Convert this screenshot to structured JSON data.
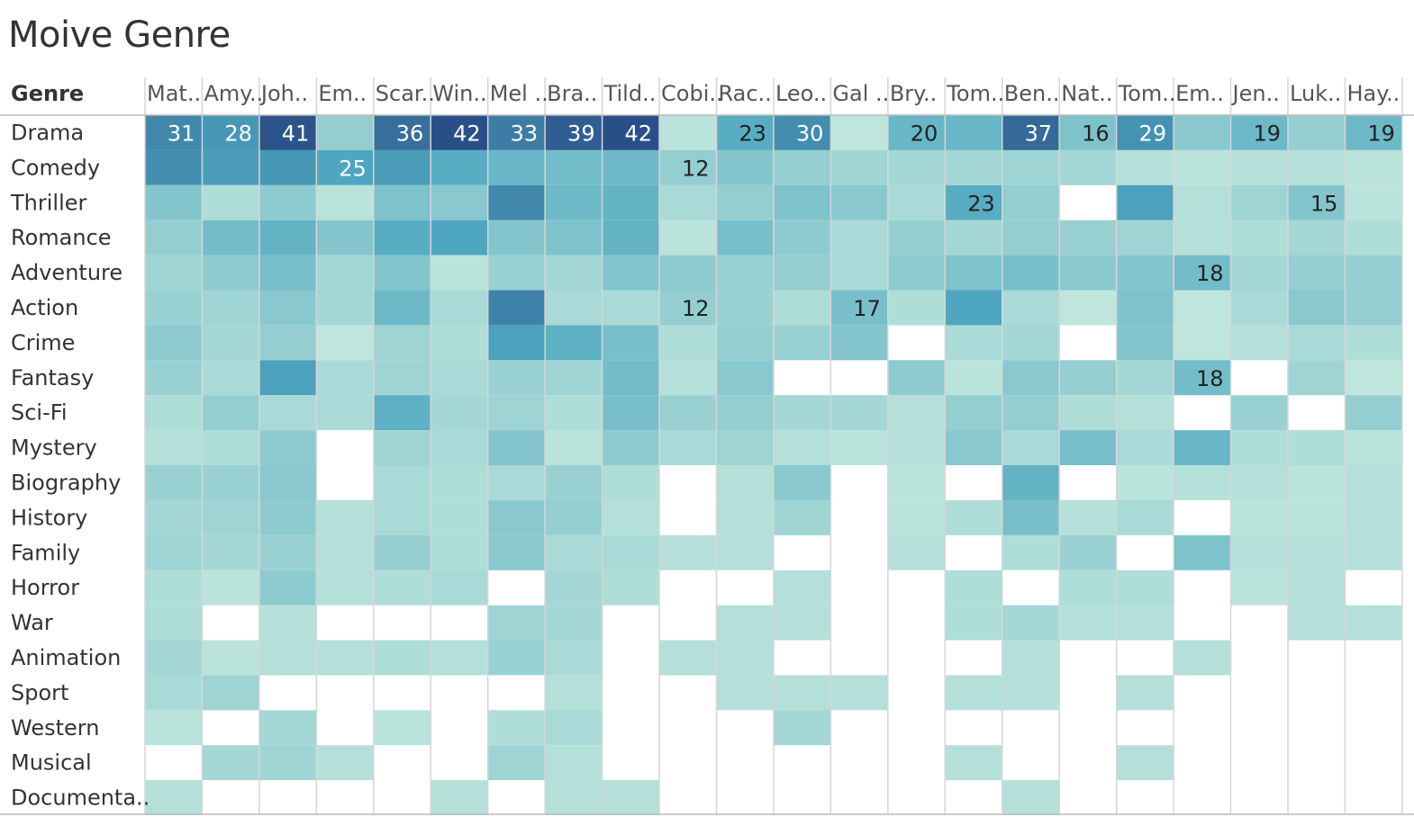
{
  "title": "Moive Genre",
  "chart_data": {
    "type": "heatmap",
    "title": "Moive Genre",
    "row_header": "Genre",
    "rows": [
      "Drama",
      "Comedy",
      "Thriller",
      "Romance",
      "Adventure",
      "Action",
      "Crime",
      "Fantasy",
      "Sci-Fi",
      "Mystery",
      "Biography",
      "History",
      "Family",
      "Horror",
      "War",
      "Animation",
      "Sport",
      "Western",
      "Musical",
      "Documenta.."
    ],
    "columns": [
      "Mat..",
      "Amy..",
      "Joh..",
      "Em..",
      "Scar..",
      "Win..",
      "Mel ..",
      "Bra..",
      "Tild..",
      "Cobi..",
      "Rac..",
      "Leo..",
      "Gal ..",
      "Bry..",
      "Tom..",
      "Ben..",
      "Nat..",
      "Tom..",
      "Em..",
      "Jen..",
      "Luk..",
      "Hay.."
    ],
    "values": [
      [
        31,
        28,
        41,
        12,
        36,
        42,
        33,
        39,
        42,
        5,
        23,
        30,
        4,
        20,
        20,
        37,
        16,
        29,
        14,
        19,
        12,
        19
      ],
      [
        30,
        27,
        28,
        25,
        27,
        23,
        20,
        18,
        19,
        12,
        15,
        12,
        10,
        9,
        9,
        10,
        9,
        6,
        5,
        6,
        6,
        5
      ],
      [
        15,
        7,
        13,
        5,
        16,
        14,
        31,
        19,
        21,
        8,
        12,
        16,
        14,
        8,
        23,
        12,
        null,
        26,
        6,
        10,
        15,
        5
      ],
      [
        12,
        18,
        21,
        15,
        23,
        25,
        15,
        16,
        21,
        5,
        17,
        13,
        8,
        12,
        9,
        12,
        11,
        10,
        6,
        7,
        9,
        7
      ],
      [
        10,
        13,
        17,
        9,
        15,
        5,
        11,
        9,
        15,
        13,
        11,
        12,
        8,
        13,
        16,
        17,
        14,
        15,
        18,
        9,
        12,
        12
      ],
      [
        11,
        10,
        14,
        9,
        19,
        8,
        32,
        8,
        8,
        12,
        11,
        7,
        17,
        7,
        25,
        8,
        4,
        16,
        4,
        8,
        14,
        12
      ],
      [
        13,
        9,
        12,
        4,
        10,
        7,
        26,
        22,
        17,
        7,
        12,
        11,
        15,
        null,
        8,
        9,
        null,
        15,
        4,
        6,
        8,
        7
      ],
      [
        11,
        8,
        26,
        8,
        10,
        8,
        11,
        10,
        18,
        6,
        14,
        null,
        null,
        13,
        5,
        14,
        12,
        9,
        18,
        null,
        10,
        4
      ],
      [
        7,
        12,
        8,
        8,
        22,
        9,
        10,
        7,
        17,
        11,
        12,
        9,
        9,
        6,
        12,
        12,
        7,
        6,
        null,
        11,
        null,
        12
      ],
      [
        6,
        7,
        13,
        null,
        10,
        8,
        15,
        5,
        13,
        8,
        10,
        6,
        5,
        6,
        14,
        8,
        17,
        8,
        20,
        7,
        7,
        5
      ],
      [
        11,
        11,
        14,
        null,
        8,
        7,
        8,
        11,
        7,
        null,
        6,
        14,
        null,
        5,
        null,
        21,
        null,
        5,
        6,
        6,
        5,
        6
      ],
      [
        9,
        10,
        13,
        6,
        8,
        7,
        14,
        12,
        6,
        null,
        6,
        10,
        null,
        5,
        7,
        17,
        6,
        8,
        null,
        5,
        5,
        6
      ],
      [
        10,
        9,
        11,
        6,
        12,
        7,
        14,
        8,
        8,
        6,
        6,
        null,
        null,
        6,
        null,
        7,
        11,
        null,
        16,
        6,
        6,
        6
      ],
      [
        7,
        5,
        13,
        6,
        7,
        8,
        null,
        9,
        7,
        null,
        null,
        6,
        null,
        null,
        7,
        null,
        7,
        7,
        null,
        5,
        6,
        null
      ],
      [
        7,
        null,
        6,
        null,
        null,
        null,
        10,
        9,
        null,
        null,
        6,
        6,
        null,
        null,
        7,
        9,
        6,
        6,
        null,
        null,
        6,
        6
      ],
      [
        9,
        5,
        6,
        6,
        7,
        6,
        11,
        8,
        null,
        6,
        6,
        null,
        null,
        null,
        null,
        6,
        null,
        null,
        6,
        null,
        null,
        null
      ],
      [
        8,
        10,
        null,
        null,
        null,
        null,
        null,
        6,
        null,
        null,
        6,
        6,
        6,
        null,
        6,
        6,
        null,
        6,
        null,
        null,
        null,
        null
      ],
      [
        5,
        null,
        9,
        null,
        5,
        null,
        7,
        8,
        null,
        null,
        null,
        9,
        null,
        null,
        null,
        null,
        null,
        null,
        null,
        null,
        null,
        null
      ],
      [
        null,
        9,
        10,
        6,
        null,
        null,
        10,
        6,
        null,
        null,
        null,
        null,
        null,
        null,
        6,
        null,
        null,
        6,
        null,
        null,
        null,
        null
      ],
      [
        6,
        null,
        null,
        null,
        null,
        6,
        null,
        6,
        6,
        null,
        null,
        null,
        null,
        null,
        null,
        6,
        null,
        null,
        null,
        null,
        null,
        null
      ]
    ],
    "labels": {
      "Drama": {
        "Mat..": 31,
        "Amy..": 28,
        "Joh..": 41,
        "Scar..": 36,
        "Win..": 42,
        "Mel ..": 33,
        "Bra..": 39,
        "Tild..": 42,
        "Rac..": 23,
        "Leo..": 30,
        "Bry..": 20,
        "Ben..": 37,
        "Nat..": 16,
        "Tom..#17": 29,
        "Jen..": 19,
        "Hay..": 19
      },
      "Comedy": {
        "Em..#3": 25,
        "Cobi..": 12
      },
      "Thriller": {
        "Tom..#14": 23,
        "Luk..": 15
      },
      "Adventure": {
        "Em..#18": 18
      },
      "Action": {
        "Cobi..": 12,
        "Gal ..": 17
      },
      "Fantasy": {
        "Em..#18": 18
      }
    },
    "label_cells": [
      [
        0,
        0
      ],
      [
        0,
        1
      ],
      [
        0,
        2
      ],
      [
        0,
        4
      ],
      [
        0,
        5
      ],
      [
        0,
        6
      ],
      [
        0,
        7
      ],
      [
        0,
        8
      ],
      [
        0,
        10
      ],
      [
        0,
        11
      ],
      [
        0,
        13
      ],
      [
        0,
        15
      ],
      [
        0,
        16
      ],
      [
        0,
        17
      ],
      [
        0,
        19
      ],
      [
        0,
        21
      ],
      [
        1,
        3
      ],
      [
        1,
        9
      ],
      [
        2,
        14
      ],
      [
        2,
        20
      ],
      [
        4,
        18
      ],
      [
        5,
        9
      ],
      [
        5,
        12
      ],
      [
        7,
        18
      ]
    ],
    "color_scale": {
      "min_color": "#bfe6dc",
      "mid_color": "#4ea7c0",
      "max_color": "#2a4f88",
      "min": 4,
      "max": 42
    }
  }
}
